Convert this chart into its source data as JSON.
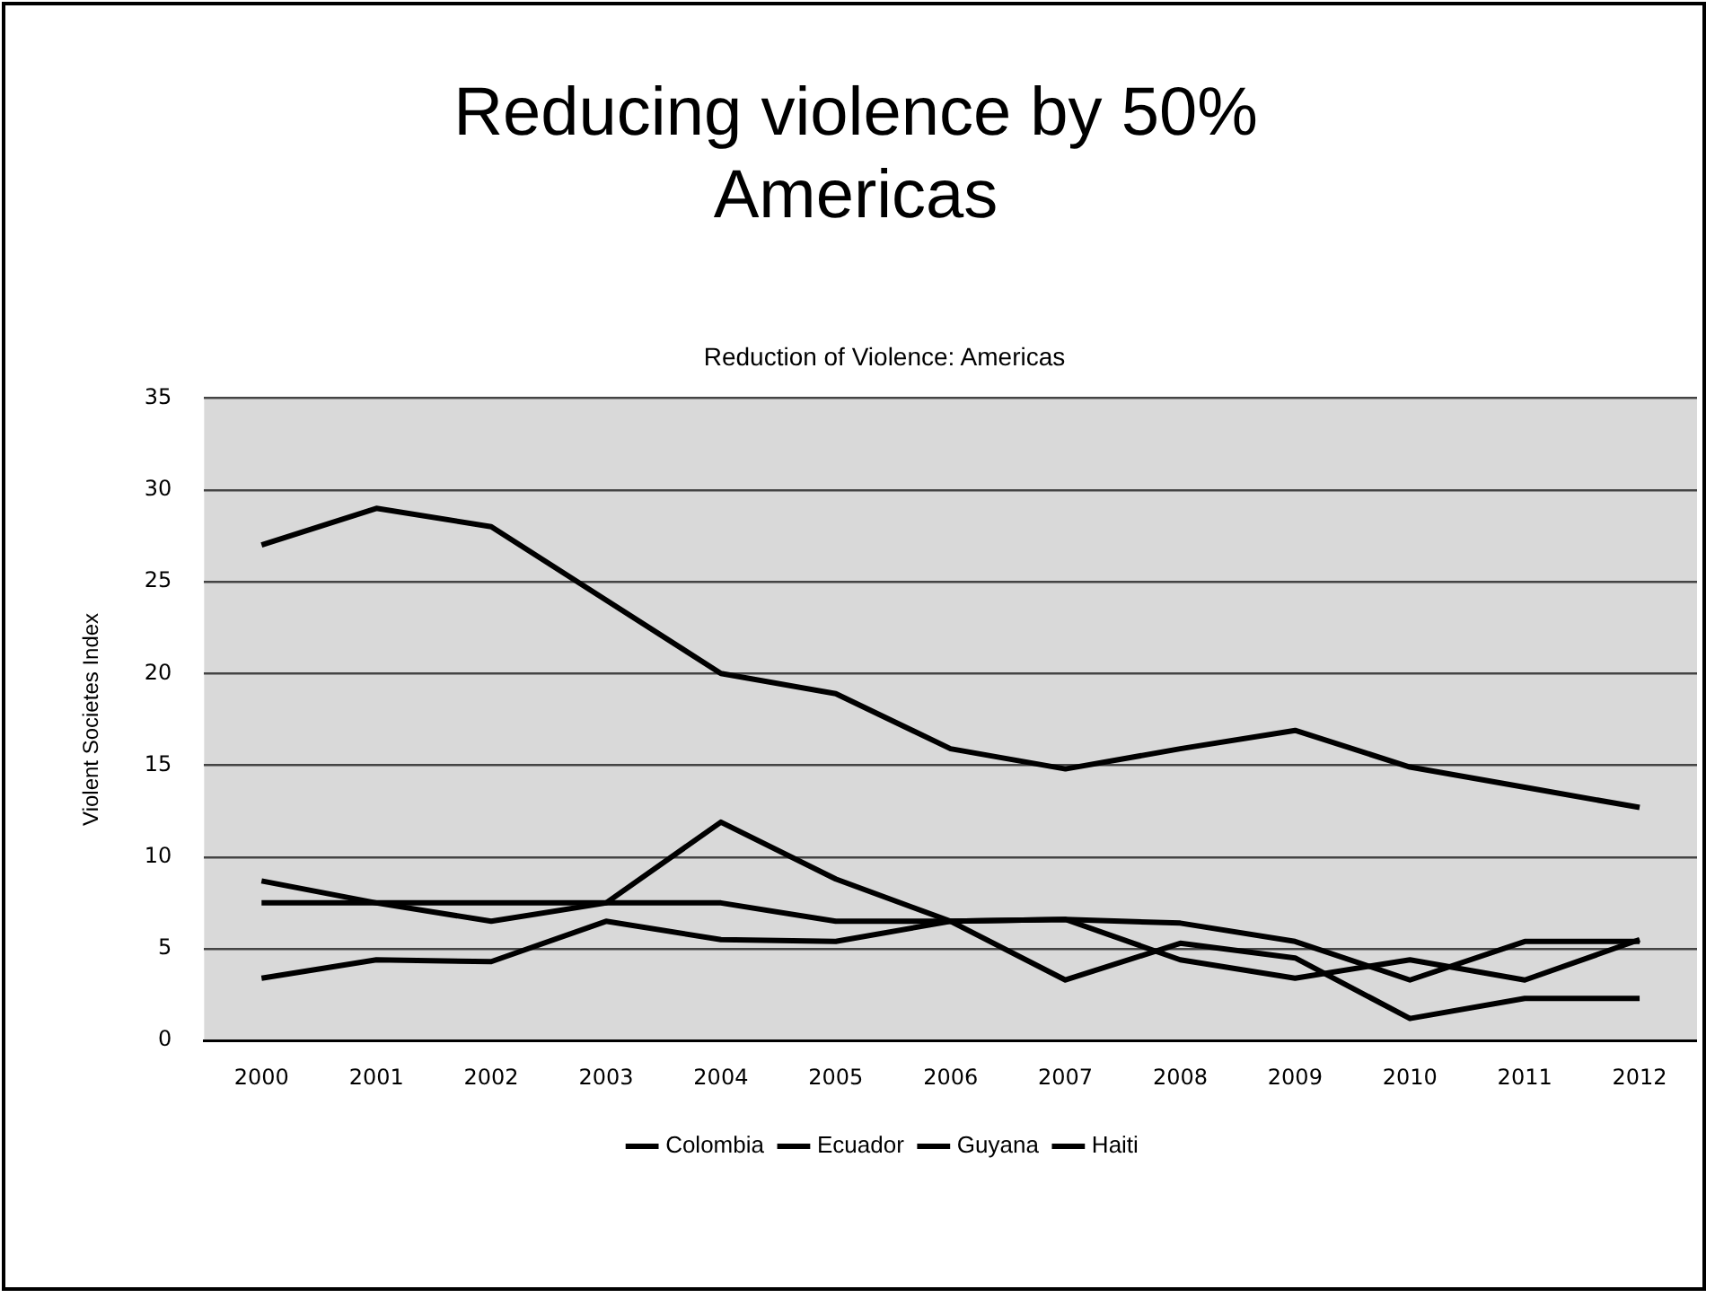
{
  "chart_data": {
    "type": "line",
    "title": "Reducing violence by 50%\nAmericas",
    "subtitle": "Reduction of Violence: Americas",
    "ylabel": "Violent Societes Index",
    "categories": [
      "2000",
      "2001",
      "2002",
      "2003",
      "2004",
      "2005",
      "2006",
      "2007",
      "2008",
      "2009",
      "2010",
      "2011",
      "2012"
    ],
    "series": [
      {
        "name": "Colombia",
        "color": "#000000",
        "values": [
          27,
          29,
          28,
          24,
          20,
          18.9,
          15.9,
          14.8,
          15.9,
          16.9,
          14.9,
          13.8,
          12.7
        ]
      },
      {
        "name": "Ecuador",
        "color": "#000000",
        "values": [
          3.4,
          4.4,
          4.3,
          6.5,
          5.5,
          5.4,
          6.5,
          6.6,
          4.4,
          3.4,
          4.4,
          3.3,
          5.5
        ]
      },
      {
        "name": "Guyana",
        "color": "#000000",
        "values": [
          7.5,
          7.5,
          7.5,
          7.5,
          7.5,
          6.5,
          6.5,
          6.6,
          6.4,
          5.4,
          3.3,
          5.4,
          5.4
        ]
      },
      {
        "name": "Haiti",
        "color": "#000000",
        "values": [
          8.7,
          7.5,
          6.5,
          7.5,
          11.9,
          8.8,
          6.5,
          3.3,
          5.3,
          4.5,
          1.2,
          2.3,
          2.3
        ]
      }
    ],
    "ylim": [
      0,
      35
    ],
    "yticks": [
      0,
      5,
      10,
      15,
      20,
      25,
      30,
      35
    ],
    "grid": "y",
    "legend": "bottom",
    "marker": "none",
    "line_style": "solid"
  }
}
